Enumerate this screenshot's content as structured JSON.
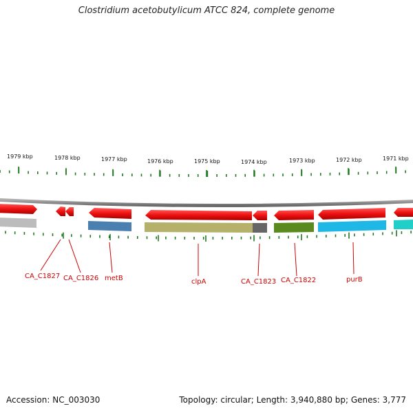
{
  "title": "Clostridium acetobutylicum ATCC 824, complete genome",
  "accession": "Accession: NC_003030",
  "summary": "Topology: circular; Length: 3,940,880 bp; Genes: 3,777",
  "ruler": {
    "labels": [
      "1979 kbp",
      "1978 kbp",
      "1977 kbp",
      "1976 kbp",
      "1975 kbp",
      "1974 kbp",
      "1973 kbp",
      "1972 kbp",
      "1971 kbp"
    ]
  },
  "colors": {
    "gene_red": "#ee1111",
    "backbone": "#8a8a8a",
    "tick_green": "#1f7a1f",
    "label_red": "#cc0000"
  },
  "genes": [
    {
      "name": "",
      "strand": "+",
      "track_color": "#bcbcbc"
    },
    {
      "name": "CA_C1827",
      "strand": "-",
      "track_color": ""
    },
    {
      "name": "CA_C1826",
      "strand": "-",
      "track_color": ""
    },
    {
      "name": "metB",
      "strand": "-",
      "track_color": "#4a7fb0"
    },
    {
      "name": "clpA",
      "strand": "-",
      "track_color": "#b5b06a"
    },
    {
      "name": "CA_C1823",
      "strand": "-",
      "track_color": "#666666"
    },
    {
      "name": "CA_C1822",
      "strand": "-",
      "track_color": "#5a8a1e"
    },
    {
      "name": "purB",
      "strand": "-",
      "track_color": "#1fb8e6"
    },
    {
      "name": "",
      "strand": "-",
      "track_color": "#1fcfc8"
    }
  ]
}
